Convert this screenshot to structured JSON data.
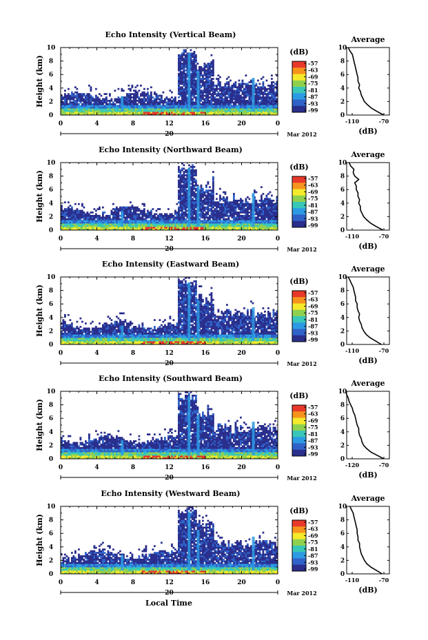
{
  "colorbar": {
    "unit": "(dB)",
    "ticks": [
      "-57",
      "-63",
      "-69",
      "-75",
      "-81",
      "-87",
      "-93",
      "-99"
    ],
    "colors": [
      "#e8382a",
      "#f7941d",
      "#f5ea2a",
      "#8fd14f",
      "#38c7b8",
      "#2c9be3",
      "#2f62c9",
      "#2a2e8c"
    ]
  },
  "date_label": "Mar 2012",
  "day_label": "20",
  "x_axis_title": "Local Time",
  "profile_title": "Average",
  "profile_xlabel": "(dB)",
  "chart_data": [
    {
      "type": "heatmap",
      "title": "Echo Intensity (Vertical Beam)",
      "ylabel": "Height (km)",
      "xticks": [
        "0",
        "4",
        "8",
        "12",
        "16",
        "20",
        "0"
      ],
      "yticks": [
        "0",
        "2",
        "4",
        "6",
        "8",
        "10"
      ],
      "xlim": [
        0,
        24
      ],
      "ylim": [
        0,
        10
      ],
      "profile": {
        "title": "Average",
        "xlabel": "(dB)",
        "xticks": [
          "-110",
          "-70"
        ],
        "height": [
          0,
          0.5,
          1,
          1.5,
          2,
          2.5,
          3,
          3.5,
          4,
          4.5,
          5,
          5.5,
          6,
          6.5,
          7,
          7.5,
          8,
          8.5,
          9,
          9.5,
          10
        ],
        "db": [
          -72,
          -80,
          -87,
          -92,
          -96,
          -98,
          -100,
          -101,
          -103,
          -102,
          -104,
          -104,
          -105,
          -106,
          -107,
          -108,
          -109,
          -110,
          -111,
          -114,
          -116
        ]
      }
    },
    {
      "type": "heatmap",
      "title": "Echo Intensity (Northward Beam)",
      "ylabel": "Height (km)",
      "xticks": [
        "0",
        "4",
        "8",
        "12",
        "16",
        "20",
        "0"
      ],
      "yticks": [
        "0",
        "2",
        "4",
        "6",
        "8",
        "10"
      ],
      "xlim": [
        0,
        24
      ],
      "ylim": [
        0,
        10
      ],
      "profile": {
        "title": "Average",
        "xlabel": "(dB)",
        "xticks": [
          "-110",
          "-70"
        ],
        "height": [
          0,
          0.5,
          1,
          1.5,
          2,
          2.5,
          3,
          3.5,
          4,
          4.5,
          5,
          5.5,
          6,
          6.5,
          7,
          7.5,
          8,
          8.5,
          9,
          9.5,
          10
        ],
        "db": [
          -73,
          -81,
          -88,
          -93,
          -97,
          -99,
          -101,
          -101,
          -103,
          -102,
          -104,
          -104,
          -106,
          -106,
          -108,
          -103,
          -108,
          -110,
          -109,
          -113,
          -115
        ]
      }
    },
    {
      "type": "heatmap",
      "title": "Echo Intensity (Eastward Beam)",
      "ylabel": "Height (km)",
      "xticks": [
        "0",
        "4",
        "8",
        "12",
        "16",
        "20",
        "0"
      ],
      "yticks": [
        "0",
        "2",
        "4",
        "6",
        "8",
        "10"
      ],
      "xlim": [
        0,
        24
      ],
      "ylim": [
        0,
        10
      ],
      "profile": {
        "title": "Average",
        "xlabel": "(dB)",
        "xticks": [
          "-110",
          "-70"
        ],
        "height": [
          0,
          0.5,
          1,
          1.5,
          2,
          2.5,
          3,
          3.5,
          4,
          4.5,
          5,
          5.5,
          6,
          6.5,
          7,
          7.5,
          8,
          8.5,
          9,
          9.5,
          10
        ],
        "db": [
          -75,
          -82,
          -89,
          -94,
          -97,
          -99,
          -100,
          -102,
          -103,
          -102,
          -104,
          -105,
          -105,
          -107,
          -107,
          -108,
          -109,
          -110,
          -112,
          -114,
          -116
        ]
      }
    },
    {
      "type": "heatmap",
      "title": "Echo Intensity (Southward Beam)",
      "ylabel": "Height (km)",
      "xticks": [
        "0",
        "4",
        "8",
        "12",
        "16",
        "20",
        "0"
      ],
      "yticks": [
        "0",
        "2",
        "4",
        "6",
        "8",
        "10"
      ],
      "xlim": [
        0,
        24
      ],
      "ylim": [
        0,
        10
      ],
      "profile": {
        "title": "Average",
        "xlabel": "(dB)",
        "xticks": [
          "-120",
          "-70"
        ],
        "height": [
          0,
          0.5,
          1,
          1.5,
          2,
          2.5,
          3,
          3.5,
          4,
          4.5,
          5,
          5.5,
          6,
          6.5,
          7,
          7.5,
          8,
          8.5,
          9,
          9.5,
          10
        ],
        "db": [
          -72,
          -80,
          -88,
          -93,
          -97,
          -99,
          -100,
          -102,
          -103,
          -103,
          -105,
          -106,
          -107,
          -108,
          -110,
          -111,
          -113,
          -115,
          -116,
          -118,
          -119
        ]
      }
    },
    {
      "type": "heatmap",
      "title": "Echo Intensity (Westward Beam)",
      "ylabel": "Height (km)",
      "xticks": [
        "0",
        "4",
        "8",
        "12",
        "16",
        "20",
        "0"
      ],
      "yticks": [
        "0",
        "2",
        "4",
        "6",
        "8",
        "10"
      ],
      "xlim": [
        0,
        24
      ],
      "ylim": [
        0,
        10
      ],
      "profile": {
        "title": "Average",
        "xlabel": "(dB)",
        "xticks": [
          "-110",
          "-70"
        ],
        "height": [
          0,
          0.5,
          1,
          1.5,
          2,
          2.5,
          3,
          3.5,
          4,
          4.5,
          5,
          5.5,
          6,
          6.5,
          7,
          7.5,
          8,
          8.5,
          9,
          9.5,
          10
        ],
        "db": [
          -74,
          -81,
          -88,
          -93,
          -96,
          -98,
          -100,
          -101,
          -102,
          -102,
          -104,
          -104,
          -105,
          -105,
          -106,
          -107,
          -108,
          -109,
          -110,
          -112,
          -114
        ]
      }
    }
  ]
}
